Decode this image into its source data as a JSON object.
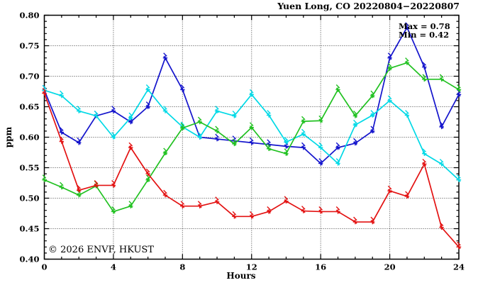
{
  "header": {
    "title": "Yuen Long, CO 20220804−20220807"
  },
  "annotation": {
    "max_label": "Max = 0.78",
    "min_label": "Min = 0.42"
  },
  "watermark_text": "© 2026 ENVF, HKUST",
  "colors": {
    "frame": "#000000",
    "grid": "#404040",
    "watermark": "#d6d6d6",
    "background": "#ffffff"
  },
  "chart_data": {
    "type": "line",
    "title": "Yuen Long, CO 20220804−20220807",
    "xlabel": "Hours",
    "ylabel": "ppm",
    "xlim": [
      0,
      24
    ],
    "ylim": [
      0.4,
      0.8
    ],
    "x_major_ticks": [
      0,
      4,
      8,
      12,
      16,
      20,
      24
    ],
    "x_tick_labels": [
      "0",
      "4",
      "8",
      "12",
      "16",
      "20",
      "24"
    ],
    "y_major_ticks": [
      0.4,
      0.45,
      0.5,
      0.55,
      0.6,
      0.65,
      0.7,
      0.75,
      0.8
    ],
    "y_tick_labels": [
      "0.40",
      "0.45",
      "0.50",
      "0.55",
      "0.60",
      "0.65",
      "0.70",
      "0.75",
      "0.80"
    ],
    "x_minor_step": 1,
    "y_minor_step": 0.01,
    "grid": "dotted, at major ticks",
    "legend_position": "none",
    "stat_max": 0.78,
    "stat_min": 0.42,
    "x": [
      0,
      1,
      2,
      3,
      4,
      5,
      6,
      7,
      8,
      9,
      10,
      11,
      12,
      13,
      14,
      15,
      16,
      17,
      18,
      19,
      20,
      21,
      22,
      23,
      24
    ],
    "series": [
      {
        "name": "series-blue",
        "color": "#1414cc",
        "marker": "asterisk",
        "values": [
          0.677,
          0.608,
          0.591,
          0.635,
          0.643,
          0.625,
          0.65,
          0.73,
          0.678,
          0.6,
          0.597,
          0.594,
          0.591,
          0.588,
          0.585,
          0.583,
          0.557,
          0.583,
          0.59,
          0.61,
          0.73,
          0.78,
          0.715,
          0.617,
          0.67
        ]
      },
      {
        "name": "series-cyan",
        "color": "#00d9e6",
        "marker": "asterisk",
        "values": [
          0.677,
          0.668,
          0.643,
          0.635,
          0.6,
          0.632,
          0.678,
          0.643,
          0.617,
          0.6,
          0.643,
          0.635,
          0.67,
          0.636,
          0.592,
          0.605,
          0.583,
          0.557,
          0.62,
          0.636,
          0.66,
          0.636,
          0.573,
          0.556,
          0.53
        ]
      },
      {
        "name": "series-green",
        "color": "#21c121",
        "marker": "x-cross",
        "values": [
          0.53,
          0.518,
          0.505,
          0.52,
          0.478,
          0.487,
          0.53,
          0.574,
          0.615,
          0.625,
          0.61,
          0.589,
          0.616,
          0.581,
          0.573,
          0.626,
          0.627,
          0.678,
          0.635,
          0.668,
          0.713,
          0.722,
          0.695,
          0.695,
          0.678
        ]
      },
      {
        "name": "series-red",
        "color": "#e31212",
        "marker": "asterisk",
        "values": [
          0.672,
          0.593,
          0.513,
          0.521,
          0.521,
          0.583,
          0.54,
          0.505,
          0.487,
          0.487,
          0.494,
          0.47,
          0.47,
          0.478,
          0.495,
          0.479,
          0.478,
          0.478,
          0.461,
          0.461,
          0.512,
          0.503,
          0.556,
          0.452,
          0.42
        ]
      }
    ]
  }
}
